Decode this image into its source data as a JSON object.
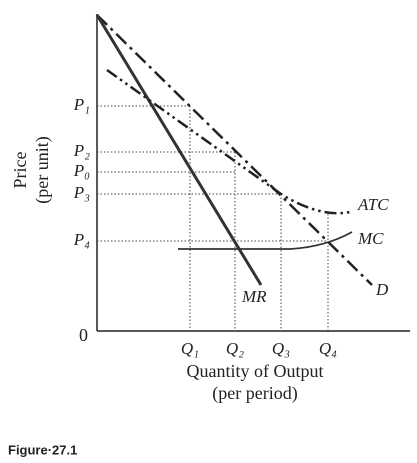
{
  "y_axis": {
    "label": [
      "Price",
      "(per unit)"
    ],
    "ticks": [
      "P₁",
      "P₂",
      "P₀",
      "P₃",
      "P₄"
    ]
  },
  "x_axis": {
    "origin": "0",
    "ticks": [
      "Q₁",
      "Q₂",
      "Q₃",
      "Q₄"
    ],
    "label": [
      "Quantity of Output",
      "(per period)"
    ]
  },
  "curves": {
    "atc": "ATC",
    "mc": "MC",
    "d": "D",
    "mr": "MR"
  },
  "caption": "Figure·27.1"
}
